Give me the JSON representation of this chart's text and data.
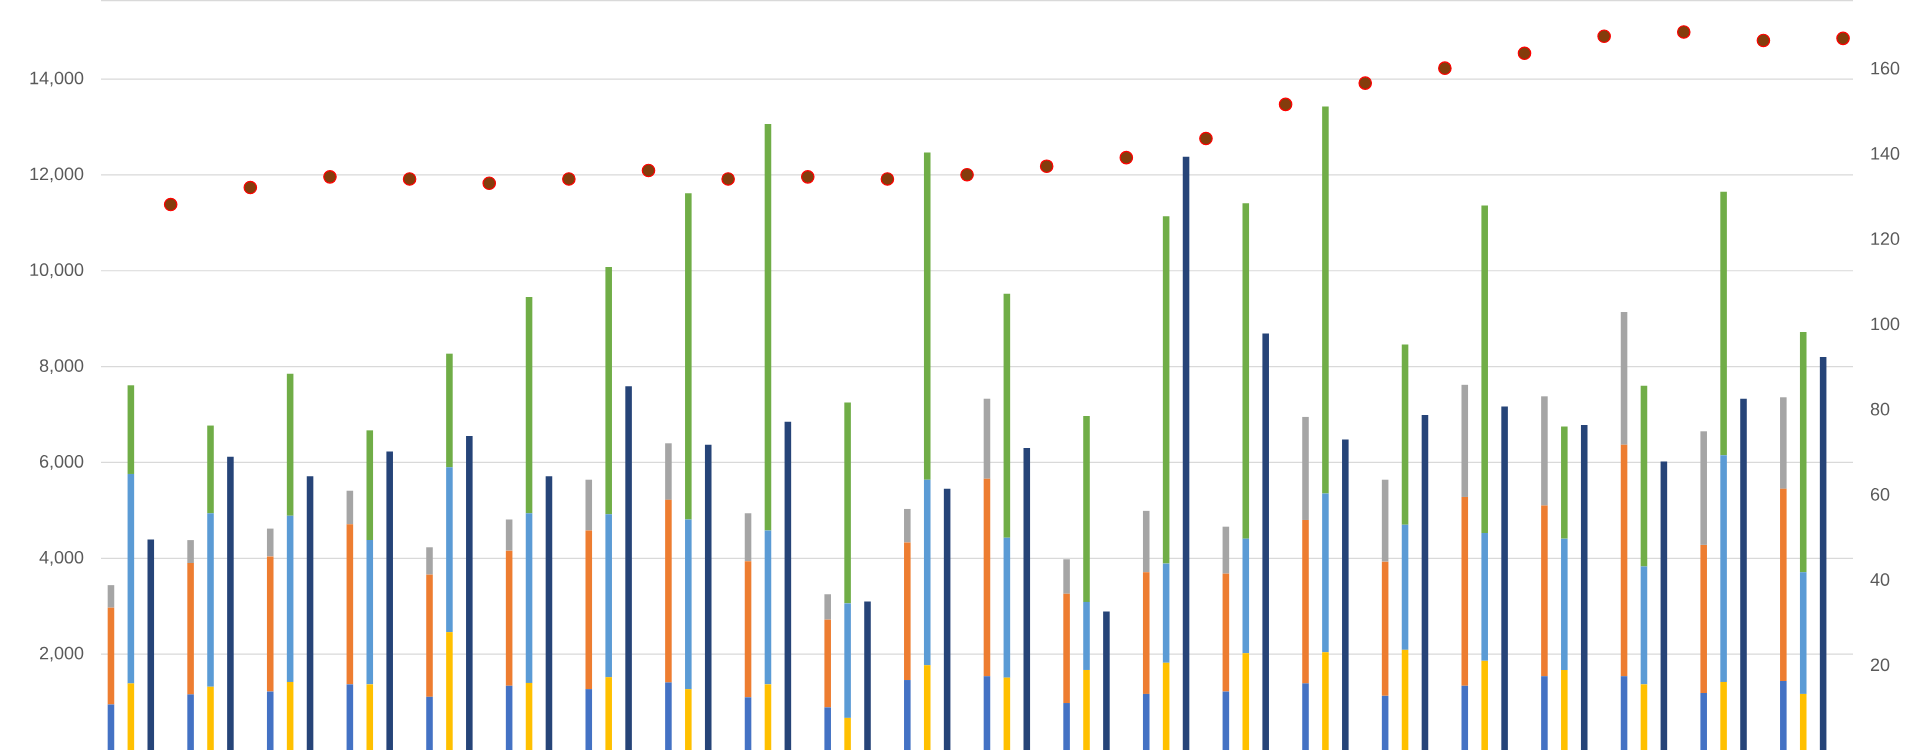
{
  "chart_data": {
    "type": "bar",
    "stacked": true,
    "grid": "y",
    "categories": [
      null,
      null,
      null,
      null,
      null,
      null,
      null,
      null,
      null,
      null,
      null,
      null,
      null,
      null,
      null,
      null,
      null,
      null,
      null,
      null,
      null,
      null,
      null,
      null,
      null,
      null,
      null,
      null,
      null,
      null,
      null,
      null,
      null,
      null,
      null,
      null,
      null,
      null,
      null,
      null,
      null,
      null,
      null,
      null,
      null,
      null,
      null,
      null,
      null,
      null,
      null,
      null,
      null,
      null,
      null,
      null,
      null,
      null,
      null,
      null,
      null,
      null,
      null,
      null,
      null,
      null,
      null,
      null,
      null,
      null,
      null,
      null,
      null,
      null,
      null,
      null,
      null,
      null,
      null,
      null,
      null,
      null,
      null,
      null,
      null,
      null,
      null,
      null
    ],
    "ylim": [
      0,
      15650
    ],
    "yticks": [
      {
        "value": 2000,
        "label": "2,000"
      },
      {
        "value": 4000,
        "label": "4,000"
      },
      {
        "value": 6000,
        "label": "6,000"
      },
      {
        "value": 8000,
        "label": "8,000"
      },
      {
        "value": 10000,
        "label": "10,000"
      },
      {
        "value": 12000,
        "label": "12,000"
      },
      {
        "value": 14000,
        "label": "14,000"
      }
    ],
    "y2lim": [
      0,
      176
    ],
    "y2ticks": [
      20,
      40,
      60,
      80,
      100,
      120,
      140,
      160
    ],
    "series": [
      {
        "color": "#4472c4",
        "values": [
          950,
          null,
          null,
          null,
          1160,
          null,
          null,
          null,
          1220,
          null,
          null,
          null,
          1370,
          null,
          null,
          null,
          1110,
          null,
          null,
          null,
          1340,
          null,
          null,
          null,
          1270,
          null,
          null,
          null,
          1410,
          null,
          null,
          null,
          1100,
          null,
          null,
          null,
          890,
          null,
          null,
          null,
          1460,
          null,
          null,
          null,
          1540,
          null,
          null,
          null,
          980,
          null,
          null,
          null,
          1170,
          null,
          null,
          null,
          1220,
          null,
          null,
          null,
          1390,
          null,
          null,
          null,
          1130,
          null,
          null,
          null,
          1340,
          null,
          null,
          null,
          1540,
          null,
          null,
          null,
          1540,
          null,
          null,
          null,
          1190,
          null,
          null,
          null,
          1440,
          null,
          null,
          null
        ]
      },
      {
        "color": "#ed7d31",
        "values": [
          2020,
          null,
          null,
          null,
          2740,
          null,
          null,
          null,
          2820,
          null,
          null,
          null,
          3340,
          null,
          null,
          null,
          2550,
          null,
          null,
          null,
          2820,
          null,
          null,
          null,
          3310,
          null,
          null,
          null,
          3810,
          null,
          null,
          null,
          2840,
          null,
          null,
          null,
          1830,
          null,
          null,
          null,
          2870,
          null,
          null,
          null,
          4120,
          null,
          null,
          null,
          2280,
          null,
          null,
          null,
          2540,
          null,
          null,
          null,
          2460,
          null,
          null,
          null,
          3410,
          null,
          null,
          null,
          2800,
          null,
          null,
          null,
          3940,
          null,
          null,
          null,
          3560,
          null,
          null,
          null,
          4830,
          null,
          null,
          null,
          3090,
          null,
          null,
          null,
          4010,
          null,
          null,
          null
        ]
      },
      {
        "color": "#a5a5a5",
        "values": [
          470,
          null,
          null,
          null,
          480,
          null,
          null,
          null,
          580,
          null,
          null,
          null,
          700,
          null,
          null,
          null,
          570,
          null,
          null,
          null,
          650,
          null,
          null,
          null,
          1060,
          null,
          null,
          null,
          1180,
          null,
          null,
          null,
          1000,
          null,
          null,
          null,
          530,
          null,
          null,
          null,
          700,
          null,
          null,
          null,
          1670,
          null,
          null,
          null,
          720,
          null,
          null,
          null,
          1280,
          null,
          null,
          null,
          980,
          null,
          null,
          null,
          2150,
          null,
          null,
          null,
          1710,
          null,
          null,
          null,
          2340,
          null,
          null,
          null,
          2280,
          null,
          null,
          null,
          2770,
          null,
          null,
          null,
          2370,
          null,
          null,
          null,
          1910,
          null,
          null,
          null
        ]
      },
      {
        "color": "#ffc000",
        "values": [
          null,
          1390,
          null,
          null,
          null,
          1320,
          null,
          null,
          null,
          1420,
          null,
          null,
          null,
          1370,
          null,
          null,
          null,
          2460,
          null,
          null,
          null,
          1400,
          null,
          null,
          null,
          1520,
          null,
          null,
          null,
          1270,
          null,
          null,
          null,
          1370,
          null,
          null,
          null,
          670,
          null,
          null,
          null,
          1770,
          null,
          null,
          null,
          1510,
          null,
          null,
          null,
          1670,
          null,
          null,
          null,
          1820,
          null,
          null,
          null,
          2020,
          null,
          null,
          null,
          2040,
          null,
          null,
          null,
          2090,
          null,
          null,
          null,
          1860,
          null,
          null,
          null,
          1670,
          null,
          null,
          null,
          1370,
          null,
          null,
          null,
          1420,
          null,
          null,
          null,
          1170,
          null,
          null
        ]
      },
      {
        "color": "#5b9bd5",
        "values": [
          null,
          4370,
          null,
          null,
          null,
          3620,
          null,
          null,
          null,
          3470,
          null,
          null,
          null,
          3010,
          null,
          null,
          null,
          3440,
          null,
          null,
          null,
          3540,
          null,
          null,
          null,
          3400,
          null,
          null,
          null,
          3540,
          null,
          null,
          null,
          3210,
          null,
          null,
          null,
          2390,
          null,
          null,
          null,
          3870,
          null,
          null,
          null,
          2920,
          null,
          null,
          null,
          1420,
          null,
          null,
          null,
          2070,
          null,
          null,
          null,
          2390,
          null,
          null,
          null,
          3310,
          null,
          null,
          null,
          2610,
          null,
          null,
          null,
          2670,
          null,
          null,
          null,
          2740,
          null,
          null,
          null,
          2460,
          null,
          null,
          null,
          4730,
          null,
          null,
          null,
          2540,
          null,
          null
        ]
      },
      {
        "color": "#70ad47",
        "values": [
          null,
          1850,
          null,
          null,
          null,
          1830,
          null,
          null,
          null,
          2960,
          null,
          null,
          null,
          2290,
          null,
          null,
          null,
          2370,
          null,
          null,
          null,
          4510,
          null,
          null,
          null,
          5160,
          null,
          null,
          null,
          6810,
          null,
          null,
          null,
          8480,
          null,
          null,
          null,
          4190,
          null,
          null,
          null,
          6830,
          null,
          null,
          null,
          5090,
          null,
          null,
          null,
          3880,
          null,
          null,
          null,
          7250,
          null,
          null,
          null,
          7000,
          null,
          null,
          null,
          8080,
          null,
          null,
          null,
          3760,
          null,
          null,
          null,
          6830,
          null,
          null,
          null,
          2340,
          null,
          null,
          null,
          3770,
          null,
          null,
          null,
          5500,
          null,
          null,
          null,
          5010,
          null,
          null
        ]
      },
      {
        "color": "#264478",
        "values": [
          null,
          null,
          4390,
          null,
          null,
          null,
          6120,
          null,
          null,
          null,
          5710,
          null,
          null,
          null,
          6230,
          null,
          null,
          null,
          6550,
          null,
          null,
          null,
          5710,
          null,
          null,
          null,
          7590,
          null,
          null,
          null,
          6370,
          null,
          null,
          null,
          6850,
          null,
          null,
          null,
          3100,
          null,
          null,
          null,
          5450,
          null,
          null,
          null,
          6300,
          null,
          null,
          null,
          2890,
          null,
          null,
          null,
          12380,
          null,
          null,
          null,
          8690,
          null,
          null,
          null,
          6480,
          null,
          null,
          null,
          6990,
          null,
          null,
          null,
          7170,
          null,
          null,
          null,
          6780,
          null,
          null,
          null,
          6020,
          null,
          null,
          null,
          7330,
          null,
          null,
          null,
          8200,
          null
        ]
      },
      {
        "type": "scatter",
        "axis": "y2",
        "marker": "circle",
        "color": "#843c0c",
        "values": [
          null,
          null,
          null,
          128,
          null,
          null,
          null,
          132,
          null,
          null,
          null,
          134.5,
          null,
          null,
          null,
          134,
          null,
          null,
          null,
          133,
          null,
          null,
          null,
          134,
          null,
          null,
          null,
          136,
          null,
          null,
          null,
          134,
          null,
          null,
          null,
          134.5,
          null,
          null,
          null,
          134,
          null,
          null,
          null,
          135,
          null,
          null,
          null,
          137,
          null,
          null,
          null,
          139,
          null,
          null,
          null,
          143.5,
          null,
          null,
          null,
          151.5,
          null,
          null,
          null,
          156.5,
          null,
          null,
          null,
          160,
          null,
          null,
          null,
          163.5,
          null,
          null,
          null,
          167.5,
          null,
          null,
          null,
          168.5,
          null,
          null,
          null,
          166.5,
          null,
          null,
          null,
          167
        ]
      }
    ]
  }
}
